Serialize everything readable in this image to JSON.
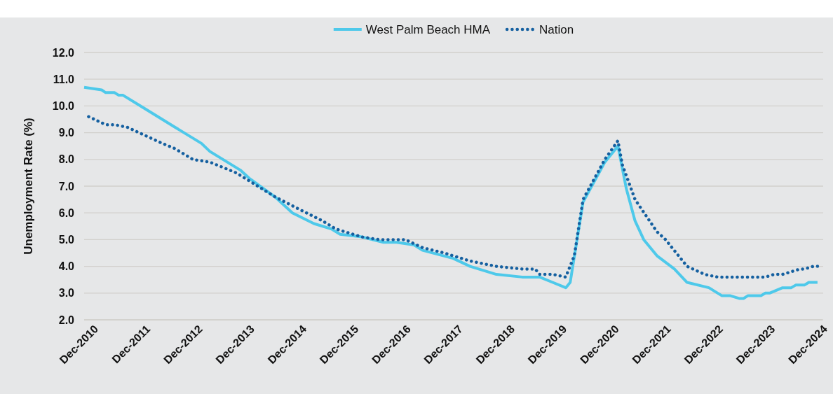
{
  "chart_data": {
    "type": "line",
    "ylabel": "Unemployment Rate (%)",
    "xlim": [
      "2010-10",
      "2024-12"
    ],
    "xticks": [
      {
        "value": "2010-12",
        "label": "Dec-2010"
      },
      {
        "value": "2011-12",
        "label": "Dec-2011"
      },
      {
        "value": "2012-12",
        "label": "Dec-2012"
      },
      {
        "value": "2013-12",
        "label": "Dec-2013"
      },
      {
        "value": "2014-12",
        "label": "Dec-2014"
      },
      {
        "value": "2015-12",
        "label": "Dec-2015"
      },
      {
        "value": "2016-12",
        "label": "Dec-2016"
      },
      {
        "value": "2017-12",
        "label": "Dec-2017"
      },
      {
        "value": "2018-12",
        "label": "Dec-2018"
      },
      {
        "value": "2019-12",
        "label": "Dec-2019"
      },
      {
        "value": "2020-12",
        "label": "Dec-2020"
      },
      {
        "value": "2021-12",
        "label": "Dec-2021"
      },
      {
        "value": "2022-12",
        "label": "Dec-2022"
      },
      {
        "value": "2023-12",
        "label": "Dec-2023"
      },
      {
        "value": "2024-12",
        "label": "Dec-2024"
      }
    ],
    "ylim": [
      2,
      12
    ],
    "yticks": [
      {
        "value": 2,
        "label": "2.0"
      },
      {
        "value": 3,
        "label": "3.0"
      },
      {
        "value": 4,
        "label": "4.0"
      },
      {
        "value": 5,
        "label": "5.0"
      },
      {
        "value": 6,
        "label": "6.0"
      },
      {
        "value": 7,
        "label": "7.0"
      },
      {
        "value": 8,
        "label": "8.0"
      },
      {
        "value": 9,
        "label": "9.0"
      },
      {
        "value": 10,
        "label": "10.0"
      },
      {
        "value": 11,
        "label": "11.0"
      },
      {
        "value": 12,
        "label": "12.0"
      }
    ],
    "grid": "y",
    "legend": "top",
    "marker": "none",
    "series": [
      {
        "name": "West Palm Beach HMA",
        "color": "#4ec9ea",
        "line_style": "solid",
        "x": [
          "2010-10",
          "2011-02",
          "2011-03",
          "2011-05",
          "2011-06",
          "2011-07",
          "2011-12",
          "2012-07",
          "2013-01",
          "2013-03",
          "2013-10",
          "2013-12",
          "2014-06",
          "2014-10",
          "2015-03",
          "2015-07",
          "2015-09",
          "2016-02",
          "2016-07",
          "2016-10",
          "2017-02",
          "2017-04",
          "2017-11",
          "2018-03",
          "2018-09",
          "2019-03",
          "2019-07",
          "2019-10",
          "2020-01",
          "2020-02",
          "2020-05",
          "2020-10",
          "2021-01",
          "2021-03",
          "2021-05",
          "2021-07",
          "2021-10",
          "2022-02",
          "2022-05",
          "2022-10",
          "2023-01",
          "2023-03",
          "2023-05",
          "2023-06",
          "2023-07",
          "2023-10",
          "2023-11",
          "2023-12",
          "2024-03",
          "2024-05",
          "2024-06",
          "2024-08",
          "2024-09",
          "2024-11"
        ],
        "values": [
          10.7,
          10.6,
          10.5,
          10.5,
          10.4,
          10.4,
          9.9,
          9.2,
          8.6,
          8.3,
          7.6,
          7.3,
          6.6,
          6.0,
          5.6,
          5.4,
          5.2,
          5.1,
          4.9,
          4.9,
          4.8,
          4.6,
          4.3,
          4.0,
          3.7,
          3.6,
          3.6,
          3.4,
          3.2,
          3.4,
          6.4,
          7.9,
          8.5,
          6.9,
          5.7,
          5.0,
          4.4,
          3.9,
          3.4,
          3.2,
          2.9,
          2.9,
          2.8,
          2.8,
          2.9,
          2.9,
          3.0,
          3.0,
          3.2,
          3.2,
          3.3,
          3.3,
          3.4,
          3.4
        ]
      },
      {
        "name": "Nation",
        "color": "#1560a0",
        "line_style": "dotted",
        "x": [
          "2010-11",
          "2011-03",
          "2011-05",
          "2011-08",
          "2011-12",
          "2012-04",
          "2012-07",
          "2012-11",
          "2013-03",
          "2013-09",
          "2014-01",
          "2014-06",
          "2014-12",
          "2015-05",
          "2015-08",
          "2016-02",
          "2016-06",
          "2016-12",
          "2017-04",
          "2017-09",
          "2018-03",
          "2018-09",
          "2019-03",
          "2019-06",
          "2019-07",
          "2019-10",
          "2020-01",
          "2020-03",
          "2020-05",
          "2020-10",
          "2021-01",
          "2021-02",
          "2021-05",
          "2021-10",
          "2021-12",
          "2022-05",
          "2022-09",
          "2022-12",
          "2023-11",
          "2024-01",
          "2024-03",
          "2024-07",
          "2024-08",
          "2024-10",
          "2024-11"
        ],
        "values": [
          9.6,
          9.3,
          9.3,
          9.2,
          8.9,
          8.6,
          8.4,
          8.0,
          7.9,
          7.5,
          7.1,
          6.6,
          6.1,
          5.7,
          5.4,
          5.1,
          5.0,
          5.0,
          4.7,
          4.5,
          4.2,
          4.0,
          3.9,
          3.9,
          3.7,
          3.7,
          3.6,
          4.4,
          6.5,
          8.0,
          8.7,
          7.8,
          6.5,
          5.3,
          5.0,
          4.0,
          3.7,
          3.6,
          3.6,
          3.7,
          3.7,
          3.9,
          3.9,
          4.0,
          4.0
        ]
      }
    ]
  }
}
